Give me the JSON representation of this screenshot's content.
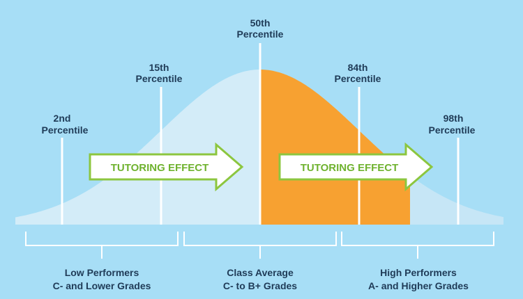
{
  "percentiles": [
    {
      "rank": "2nd",
      "label": "Percentile"
    },
    {
      "rank": "15th",
      "label": "Percentile"
    },
    {
      "rank": "50th",
      "label": "Percentile"
    },
    {
      "rank": "84th",
      "label": "Percentile"
    },
    {
      "rank": "98th",
      "label": "Percentile"
    }
  ],
  "arrows": [
    "TUTORING EFFECT",
    "TUTORING EFFECT"
  ],
  "groups": [
    {
      "title": "Low Performers",
      "subtitle": "C- and Lower Grades"
    },
    {
      "title": "Class Average",
      "subtitle": "C- to B+ Grades"
    },
    {
      "title": "High Performers",
      "subtitle": "A- and Higher Grades"
    }
  ]
}
